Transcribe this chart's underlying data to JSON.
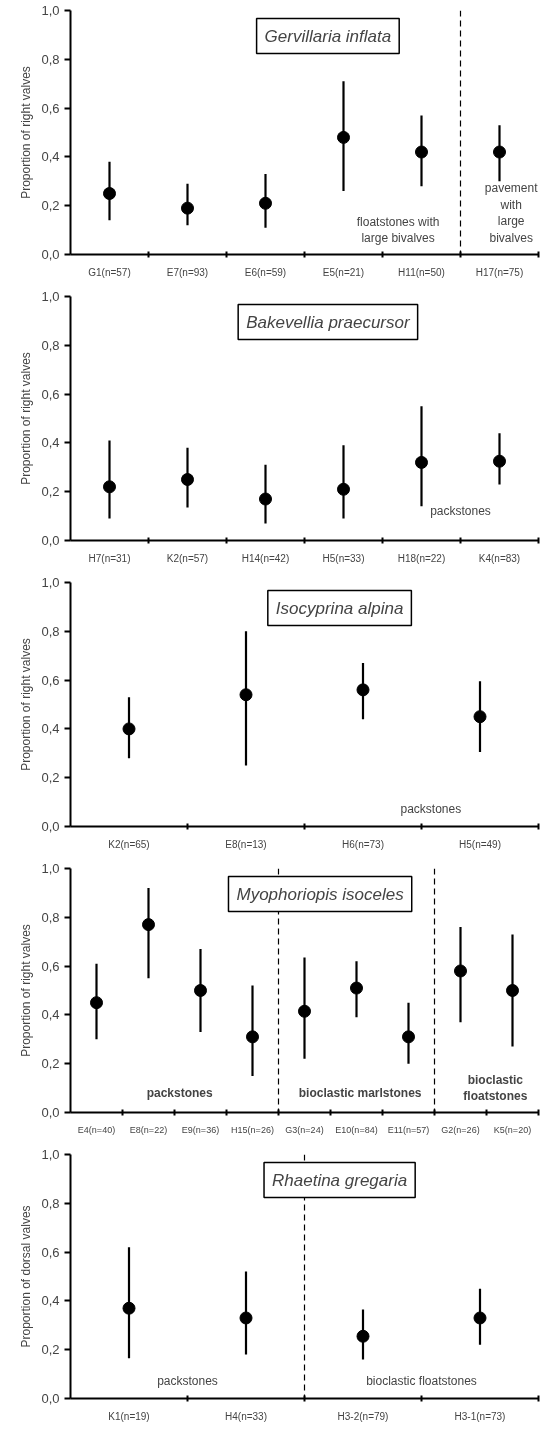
{
  "chart_data": [
    {
      "type": "scatter",
      "title": "Gervillaria inflata",
      "ylabel": "Proportion of right valves",
      "categories": [
        "G1(n=57)",
        "E7(n=93)",
        "E6(n=59)",
        "E5(n=21)",
        "H11(n=50)",
        "H17(n=75)"
      ],
      "series": [
        {
          "color": "#000000",
          "values": [
            0.25,
            0.19,
            0.21,
            0.48,
            0.42,
            0.42
          ],
          "errors": [
            [
              0.14,
              0.38
            ],
            [
              0.12,
              0.29
            ],
            [
              0.11,
              0.33
            ],
            [
              0.26,
              0.71
            ],
            [
              0.28,
              0.57
            ],
            [
              0.3,
              0.53
            ]
          ]
        }
      ],
      "ylim": [
        0,
        1
      ],
      "yticks": [
        {
          "value": 0,
          "label": "0,0"
        },
        {
          "value": 0.2,
          "label": "0,2"
        },
        {
          "value": 0.4,
          "label": "0,4"
        },
        {
          "value": 0.6,
          "label": "0,6"
        },
        {
          "value": 0.8,
          "label": "0,8"
        },
        {
          "value": 1,
          "label": "1,0"
        }
      ],
      "annotations": [
        "floatstones with\nlarge bivalves",
        "pavement\nwith\nlarge\nbivalves"
      ],
      "marker": "circle",
      "grid": false
    },
    {
      "type": "scatter",
      "title": "Bakevellia praecursor",
      "ylabel": "Proportion of right valves",
      "categories": [
        "H7(n=31)",
        "K2(n=57)",
        "H14(n=42)",
        "H5(n=33)",
        "H18(n=22)",
        "K4(n=83)"
      ],
      "series": [
        {
          "color": "#000000",
          "values": [
            0.22,
            0.25,
            0.17,
            0.21,
            0.32,
            0.325
          ],
          "errors": [
            [
              0.09,
              0.41
            ],
            [
              0.135,
              0.38
            ],
            [
              0.07,
              0.31
            ],
            [
              0.09,
              0.39
            ],
            [
              0.14,
              0.55
            ],
            [
              0.23,
              0.44
            ]
          ]
        }
      ],
      "ylim": [
        0,
        1
      ],
      "yticks": [
        {
          "value": 0,
          "label": "0,0"
        },
        {
          "value": 0.2,
          "label": "0,2"
        },
        {
          "value": 0.4,
          "label": "0,4"
        },
        {
          "value": 0.6,
          "label": "0,6"
        },
        {
          "value": 0.8,
          "label": "0,8"
        },
        {
          "value": 1,
          "label": "1,0"
        }
      ],
      "annotations": [
        "packstones"
      ],
      "marker": "circle",
      "grid": false
    },
    {
      "type": "scatter",
      "title": "Isocyprina alpina",
      "ylabel": "Proportion of right valves",
      "categories": [
        "K2(n=65)",
        "E8(n=13)",
        "H6(n=73)",
        "H5(n=49)"
      ],
      "series": [
        {
          "color": "#000000",
          "values": [
            0.4,
            0.54,
            0.56,
            0.45
          ],
          "errors": [
            [
              0.28,
              0.53
            ],
            [
              0.25,
              0.8
            ],
            [
              0.44,
              0.67
            ],
            [
              0.305,
              0.595
            ]
          ]
        }
      ],
      "ylim": [
        0,
        1
      ],
      "yticks": [
        {
          "value": 0,
          "label": "0,0"
        },
        {
          "value": 0.2,
          "label": "0,2"
        },
        {
          "value": 0.4,
          "label": "0,4"
        },
        {
          "value": 0.6,
          "label": "0,6"
        },
        {
          "value": 0.8,
          "label": "0,8"
        },
        {
          "value": 1,
          "label": "1,0"
        }
      ],
      "annotations": [
        "packstones"
      ],
      "marker": "circle",
      "grid": false
    },
    {
      "type": "scatter",
      "title": "Myophoriopis isoceles",
      "ylabel": "Proportion of right valves",
      "categories": [
        "E4(n=40)",
        "E8(n=22)",
        "E9(n=36)",
        "H15(n=26)",
        "G3(n=24)",
        "E10(n=84)",
        "E11(n=57)",
        "G2(n=26)",
        "K5(n=20)"
      ],
      "series": [
        {
          "color": "#000000",
          "values": [
            0.45,
            0.77,
            0.5,
            0.31,
            0.415,
            0.51,
            0.31,
            0.58,
            0.5
          ],
          "errors": [
            [
              0.3,
              0.61
            ],
            [
              0.55,
              0.92
            ],
            [
              0.33,
              0.67
            ],
            [
              0.15,
              0.52
            ],
            [
              0.22,
              0.635
            ],
            [
              0.39,
              0.62
            ],
            [
              0.2,
              0.45
            ],
            [
              0.37,
              0.76
            ],
            [
              0.27,
              0.73
            ]
          ]
        }
      ],
      "ylim": [
        0,
        1
      ],
      "yticks": [
        {
          "value": 0,
          "label": "0,0"
        },
        {
          "value": 0.2,
          "label": "0,2"
        },
        {
          "value": 0.4,
          "label": "0,4"
        },
        {
          "value": 0.6,
          "label": "0,6"
        },
        {
          "value": 0.8,
          "label": "0,8"
        },
        {
          "value": 1,
          "label": "1,0"
        }
      ],
      "annotations": [
        "packstones",
        "bioclastic marlstones",
        "bioclastic\nfloatstones"
      ],
      "marker": "circle",
      "grid": false
    },
    {
      "type": "scatter",
      "title": "Rhaetina gregaria",
      "ylabel": "Proportion of dorsal valves",
      "categories": [
        "K1(n=19)",
        "H4(n=33)",
        "H3-2(n=79)",
        "H3-1(n=73)"
      ],
      "series": [
        {
          "color": "#000000",
          "values": [
            0.37,
            0.33,
            0.255,
            0.33
          ],
          "errors": [
            [
              0.165,
              0.62
            ],
            [
              0.18,
              0.52
            ],
            [
              0.16,
              0.365
            ],
            [
              0.22,
              0.45
            ]
          ]
        }
      ],
      "ylim": [
        0,
        1
      ],
      "yticks": [
        {
          "value": 0,
          "label": "0,0"
        },
        {
          "value": 0.2,
          "label": "0,2"
        },
        {
          "value": 0.4,
          "label": "0,4"
        },
        {
          "value": 0.6,
          "label": "0,6"
        },
        {
          "value": 0.8,
          "label": "0,8"
        },
        {
          "value": 1,
          "label": "1,0"
        }
      ],
      "annotations": [
        "packstones",
        "bioclastic floatstones"
      ],
      "marker": "circle",
      "grid": false
    }
  ]
}
